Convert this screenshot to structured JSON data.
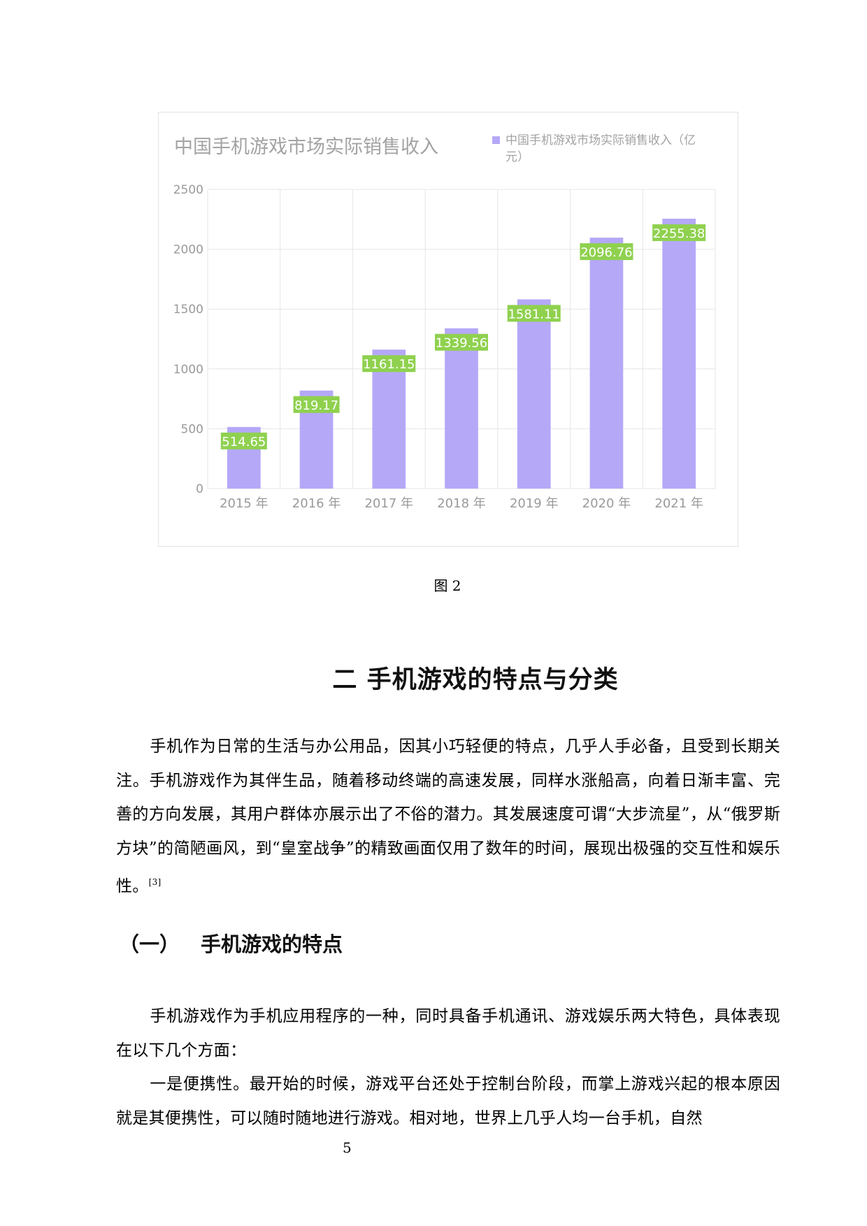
{
  "chart_data": {
    "type": "bar",
    "title": "中国手机游戏市场实际销售收入",
    "legend": "中国手机游戏市场实际销售收入（亿元）",
    "legend_position": "top-right",
    "categories": [
      "2015 年",
      "2016 年",
      "2017 年",
      "2018 年",
      "2019 年",
      "2020 年",
      "2021 年"
    ],
    "series": [
      {
        "name": "中国手机游戏市场实际销售收入（亿元）",
        "values": [
          514.65,
          819.17,
          1161.15,
          1339.56,
          1581.11,
          2096.76,
          2255.38
        ]
      }
    ],
    "data_labels": [
      "514.65",
      "819.17",
      "1161.15",
      "1339.56",
      "1581.11",
      "2096.76",
      "2255.38"
    ],
    "yticks": [
      0,
      500,
      1000,
      1500,
      2000,
      2500
    ],
    "ylim": [
      0,
      2500
    ],
    "grid": true,
    "colors": {
      "bar": "#b5a8f7",
      "label_bg": "#8fd14f",
      "label_text": "#ffffff",
      "title": "#a3a3a3",
      "axis_text": "#9a9a9a",
      "grid": "#e6e6e6"
    }
  },
  "figure_caption": "图 2",
  "section_heading": "二  手机游戏的特点与分类",
  "paragraph1": {
    "text": "手机作为日常的生活与办公用品，因其小巧轻便的特点，几乎人手必备，且受到长期关注。手机游戏作为其伴生品，随着移动终端的高速发展，同样水涨船高，向着日渐丰富、完善的方向发展，其用户群体亦展示出了不俗的潜力。其发展速度可谓“大步流星”，从“俄罗斯方块”的简陋画风，到“皇室战争”的精致画面仅用了数年的时间，展现出极强的交互性和娱乐性。",
    "citation": "[3]"
  },
  "subsection": {
    "number": "（一）",
    "title": "手机游戏的特点"
  },
  "paragraph2": "手机游戏作为手机应用程序的一种，同时具备手机通讯、游戏娱乐两大特色，具体表现在以下几个方面：",
  "paragraph3": "一是便携性。最开始的时候，游戏平台还处于控制台阶段，而掌上游戏兴起的根本原因就是其便携性，可以随时随地进行游戏。相对地，世界上几乎人均一台手机，自然",
  "page_number": "5"
}
